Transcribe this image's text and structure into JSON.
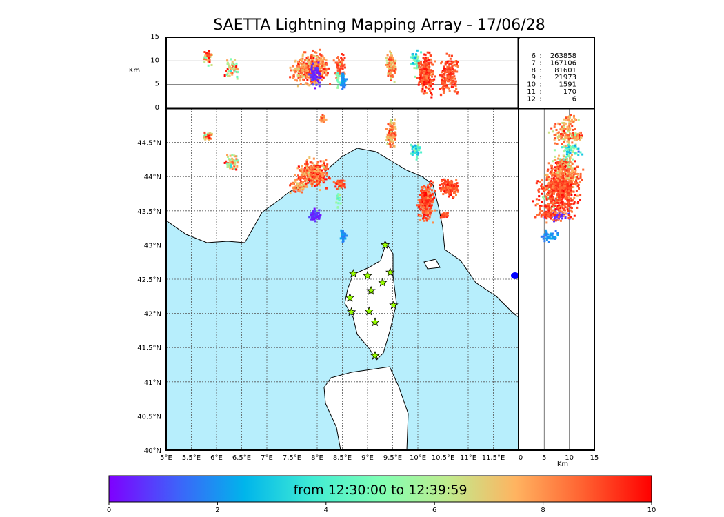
{
  "chart_data": {
    "type": "scatter",
    "title": "SAETTA Lightning Mapping Array - 17/06/28",
    "map": {
      "lon_range": [
        5,
        12
      ],
      "lat_range": [
        40,
        45
      ],
      "lon_ticks": [
        "5°E",
        "5.5°E",
        "6°E",
        "6.5°E",
        "7°E",
        "7.5°E",
        "8°E",
        "8.5°E",
        "9°E",
        "9.5°E",
        "10°E",
        "10.5°E",
        "11°E",
        "11.5°E"
      ],
      "lat_ticks": [
        "40°N",
        "40.5°N",
        "41°N",
        "41.5°N",
        "42°N",
        "42.5°N",
        "43°N",
        "43.5°N",
        "44°N",
        "44.5°N"
      ]
    },
    "alt_axis": {
      "label": "Km",
      "range": [
        0,
        15
      ],
      "ticks": [
        "0",
        "5",
        "10",
        "15"
      ]
    },
    "counts": [
      {
        "level": "6",
        "sep": ":",
        "count": "263858",
        "color": "#000000"
      },
      {
        "level": "7",
        "sep": ":",
        "count": "167106",
        "color": "#ff0000"
      },
      {
        "level": "8",
        "sep": ":",
        "count": "81601",
        "color": "#000000"
      },
      {
        "level": "9",
        "sep": ":",
        "count": "21973",
        "color": "#000000"
      },
      {
        "level": "10",
        "sep": ":",
        "count": "1591",
        "color": "#000000"
      },
      {
        "level": "11",
        "sep": ":",
        "count": "170",
        "color": "#000000"
      },
      {
        "level": "12",
        "sep": ":",
        "count": "6",
        "color": "#000000"
      }
    ],
    "clusters": [
      {
        "lon": 5.8,
        "lat": 44.6,
        "dlon": 0.06,
        "dlat": 0.05,
        "alt": 11,
        "dalt": 1.2,
        "t": 8,
        "dt": 2,
        "n": 40
      },
      {
        "lon": 6.3,
        "lat": 44.22,
        "dlon": 0.1,
        "dlat": 0.1,
        "alt": 8.5,
        "dalt": 1.5,
        "t": 7,
        "dt": 2.5,
        "n": 60
      },
      {
        "lon": 7.9,
        "lat": 44.05,
        "dlon": 0.25,
        "dlat": 0.15,
        "alt": 8.5,
        "dalt": 2.5,
        "t": 8.5,
        "dt": 1.5,
        "n": 320
      },
      {
        "lon": 7.6,
        "lat": 43.85,
        "dlon": 0.12,
        "dlat": 0.06,
        "alt": 8,
        "dalt": 2,
        "t": 8.2,
        "dt": 1.5,
        "n": 60
      },
      {
        "lon": 8.1,
        "lat": 44.85,
        "dlon": 0.05,
        "dlat": 0.05,
        "alt": 10,
        "dalt": 1,
        "t": 8,
        "dt": 1,
        "n": 20
      },
      {
        "lon": 8.45,
        "lat": 43.9,
        "dlon": 0.08,
        "dlat": 0.05,
        "alt": 9,
        "dalt": 2,
        "t": 9,
        "dt": 0.7,
        "n": 60
      },
      {
        "lon": 8.4,
        "lat": 43.7,
        "dlon": 0.04,
        "dlat": 0.1,
        "alt": 7,
        "dalt": 2,
        "t": 5,
        "dt": 1,
        "n": 20
      },
      {
        "lon": 7.95,
        "lat": 43.45,
        "dlon": 0.1,
        "dlat": 0.06,
        "alt": 7,
        "dalt": 2,
        "t": 0.5,
        "dt": 0.5,
        "n": 60
      },
      {
        "lon": 8.5,
        "lat": 43.15,
        "dlon": 0.05,
        "dlat": 0.07,
        "alt": 6,
        "dalt": 1.5,
        "t": 2,
        "dt": 0.5,
        "n": 40
      },
      {
        "lon": 9.45,
        "lat": 44.65,
        "dlon": 0.08,
        "dlat": 0.15,
        "alt": 9,
        "dalt": 2,
        "t": 8,
        "dt": 1.5,
        "n": 110
      },
      {
        "lon": 9.95,
        "lat": 44.4,
        "dlon": 0.07,
        "dlat": 0.08,
        "alt": 10,
        "dalt": 2,
        "t": 4,
        "dt": 2,
        "n": 50
      },
      {
        "lon": 10.15,
        "lat": 43.65,
        "dlon": 0.12,
        "dlat": 0.2,
        "alt": 7.5,
        "dalt": 3,
        "t": 9,
        "dt": 1,
        "n": 260
      },
      {
        "lon": 10.6,
        "lat": 43.85,
        "dlon": 0.12,
        "dlat": 0.1,
        "alt": 7.5,
        "dalt": 3,
        "t": 9,
        "dt": 0.8,
        "n": 150
      },
      {
        "lon": 10.5,
        "lat": 43.45,
        "dlon": 0.06,
        "dlat": 0.03,
        "alt": 5,
        "dalt": 1.5,
        "t": 9,
        "dt": 0.5,
        "n": 30
      }
    ],
    "stations": [
      [
        9.35,
        43.0
      ],
      [
        8.72,
        42.58
      ],
      [
        9.0,
        42.55
      ],
      [
        9.45,
        42.6
      ],
      [
        9.3,
        42.45
      ],
      [
        9.07,
        42.33
      ],
      [
        8.65,
        42.23
      ],
      [
        9.52,
        42.12
      ],
      [
        8.68,
        42.02
      ],
      [
        9.03,
        42.03
      ],
      [
        9.15,
        41.87
      ],
      [
        9.15,
        41.38
      ]
    ],
    "colorbar": {
      "label": "from 12:30:00 to 12:39:59",
      "range": [
        0,
        10
      ],
      "ticks": [
        "0",
        "2",
        "4",
        "6",
        "8",
        "10"
      ],
      "colors": [
        "#7f00ff",
        "#3f61fa",
        "#00b5eb",
        "#40ecd4",
        "#80ffb4",
        "#c0eb8d",
        "#ffb360",
        "#ff6030",
        "#ff0000"
      ]
    }
  }
}
